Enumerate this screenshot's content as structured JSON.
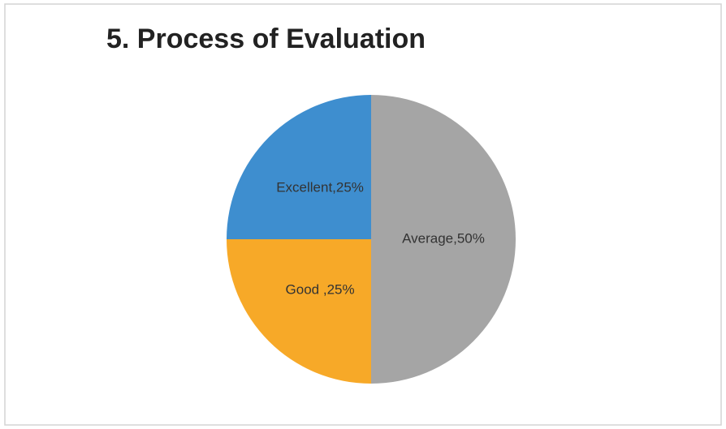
{
  "chart_data": {
    "type": "pie",
    "title": "5. Process of Evaluation",
    "values": [
      50,
      25,
      25
    ],
    "value_labels": [
      "Average,50%",
      "Good ,25%",
      "Excellent,25%"
    ],
    "colors": [
      "#a5a5a5",
      "#f7a928",
      "#3e8ecf"
    ]
  }
}
